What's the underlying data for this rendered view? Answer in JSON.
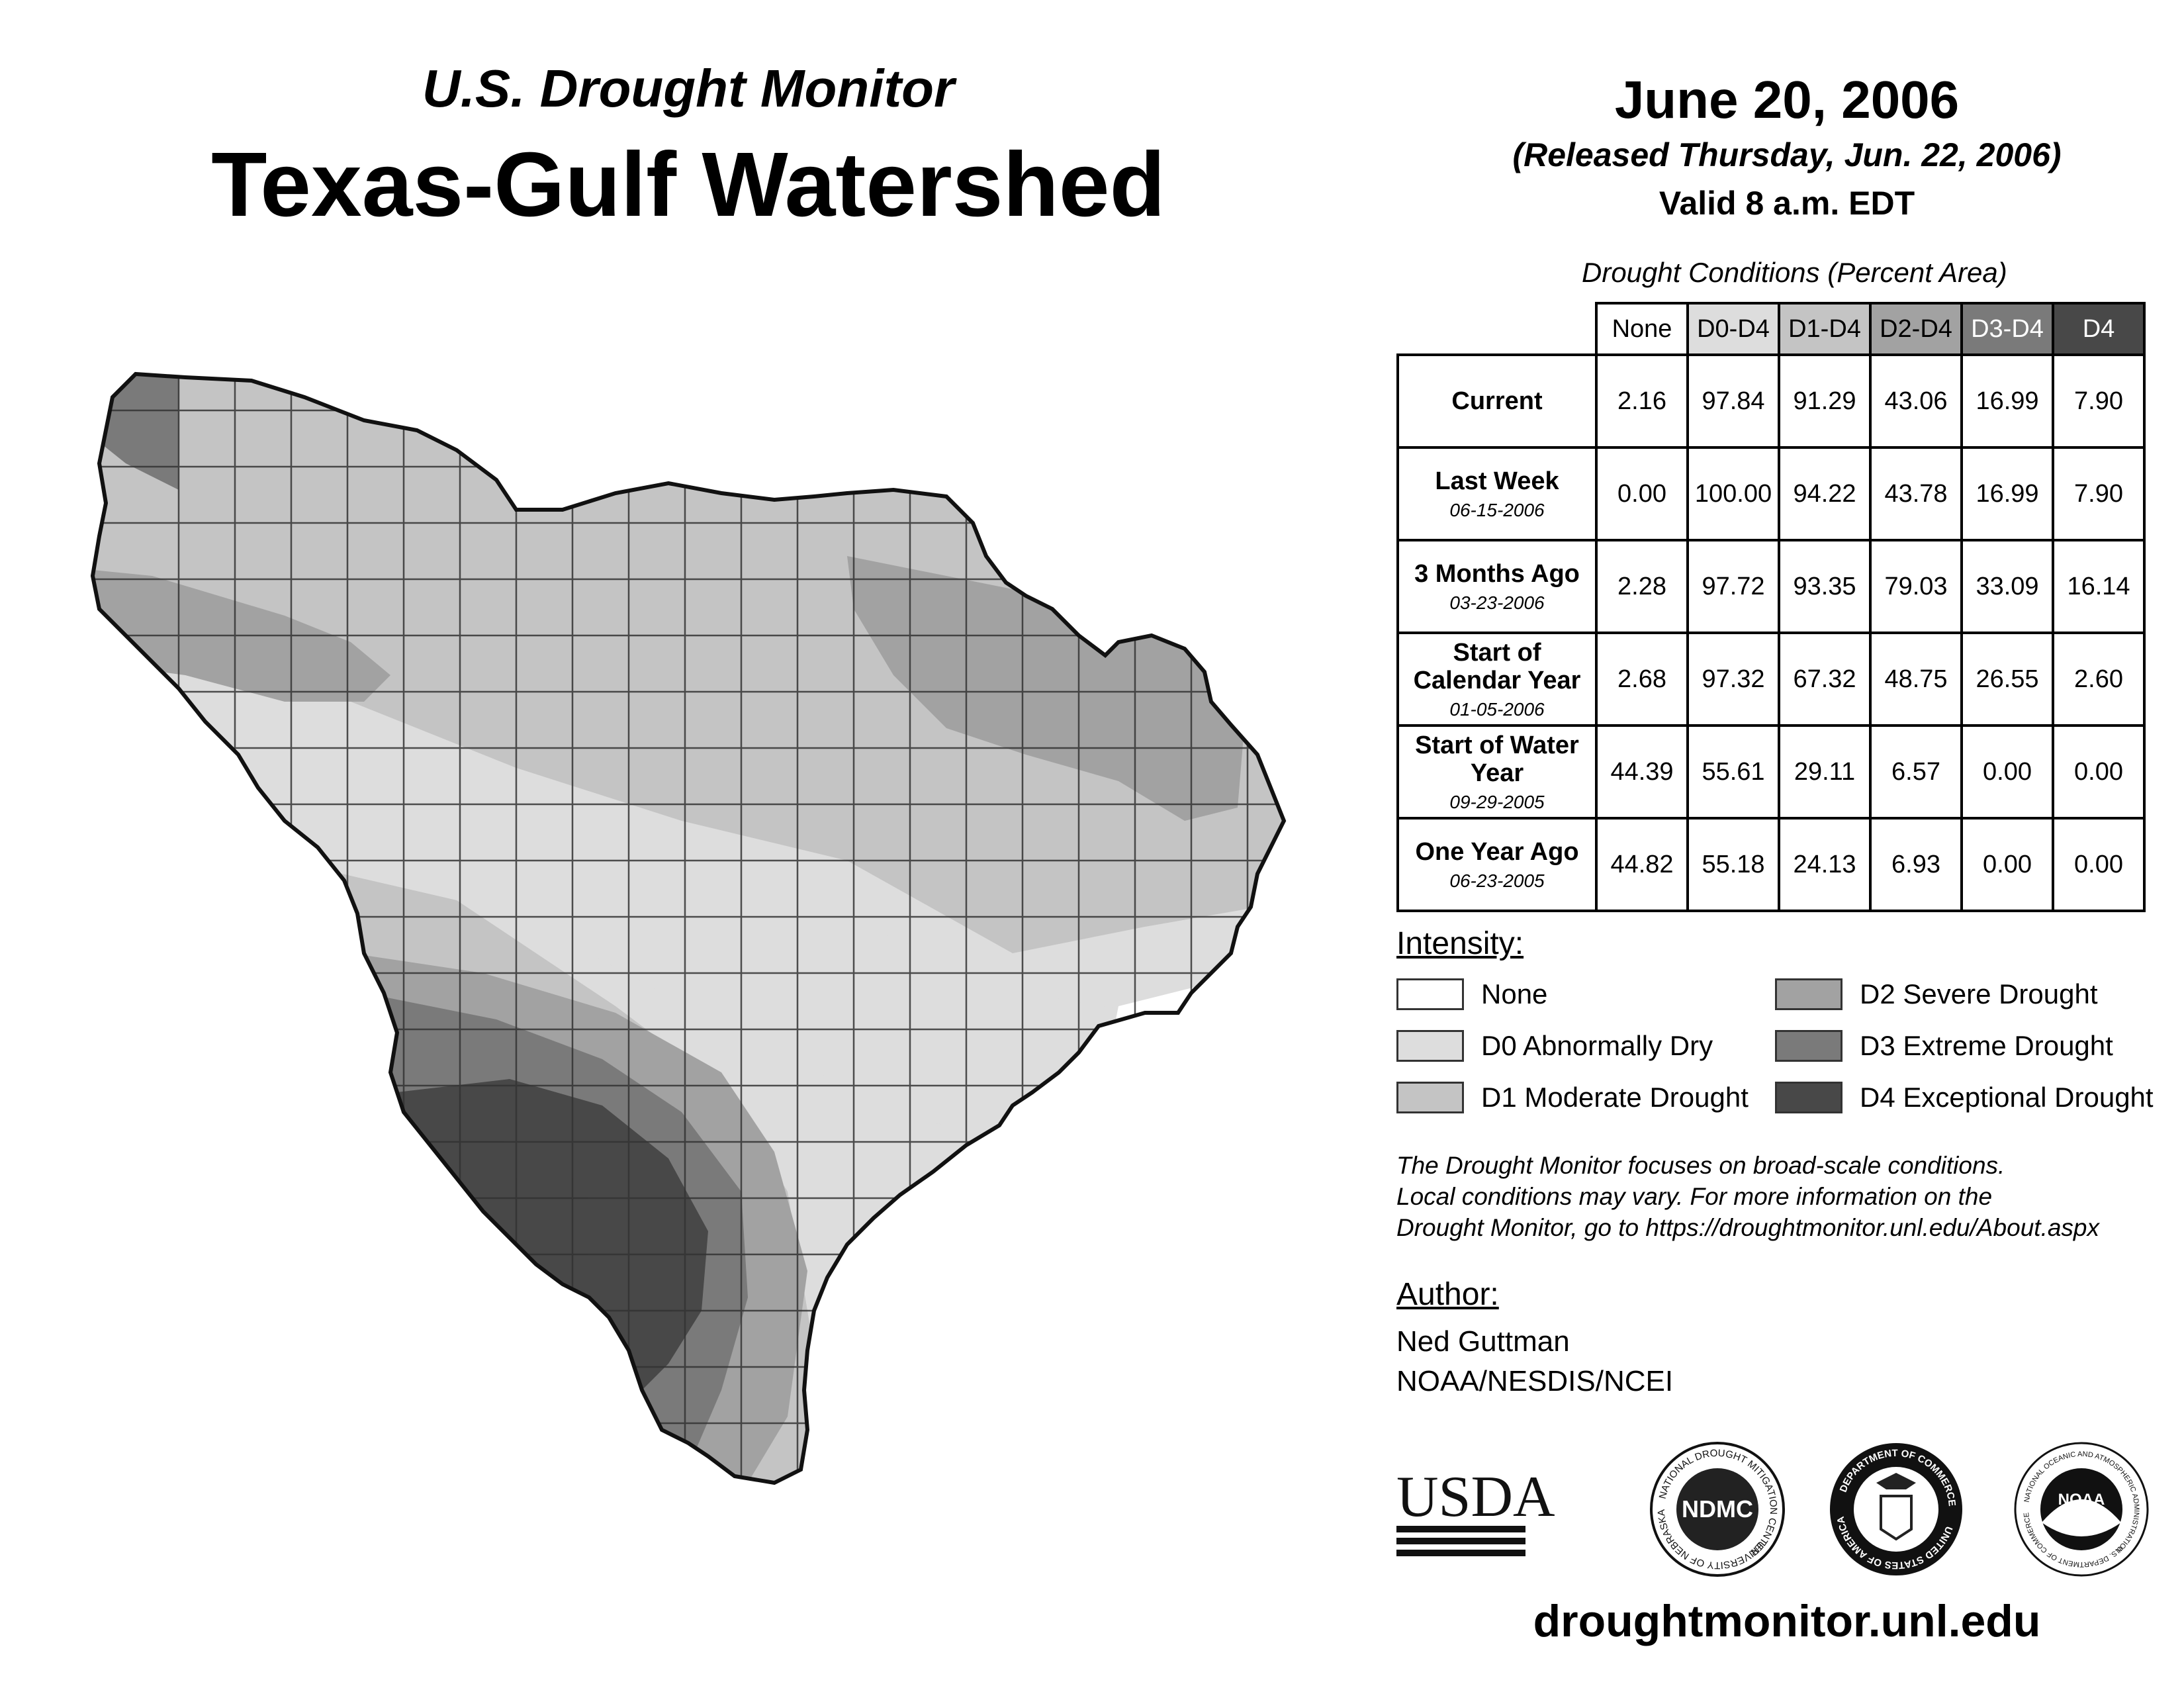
{
  "header": {
    "subtitle": "U.S. Drought Monitor",
    "title": "Texas-Gulf Watershed",
    "date": "June 20, 2006",
    "released": "(Released Thursday, Jun. 22, 2006)",
    "valid": "Valid 8 a.m. EDT"
  },
  "table": {
    "caption": "Drought Conditions (Percent Area)",
    "columns": [
      "None",
      "D0-D4",
      "D1-D4",
      "D2-D4",
      "D3-D4",
      "D4"
    ],
    "rows": [
      {
        "label": "Current",
        "date": "",
        "values": [
          "2.16",
          "97.84",
          "91.29",
          "43.06",
          "16.99",
          "7.90"
        ]
      },
      {
        "label": "Last Week",
        "date": "06-15-2006",
        "values": [
          "0.00",
          "100.00",
          "94.22",
          "43.78",
          "16.99",
          "7.90"
        ]
      },
      {
        "label": "3 Months Ago",
        "date": "03-23-2006",
        "values": [
          "2.28",
          "97.72",
          "93.35",
          "79.03",
          "33.09",
          "16.14"
        ]
      },
      {
        "label": "Start of Calendar Year",
        "date": "01-05-2006",
        "values": [
          "2.68",
          "97.32",
          "67.32",
          "48.75",
          "26.55",
          "2.60"
        ]
      },
      {
        "label": "Start of Water Year",
        "date": "09-29-2005",
        "values": [
          "44.39",
          "55.61",
          "29.11",
          "6.57",
          "0.00",
          "0.00"
        ]
      },
      {
        "label": "One Year Ago",
        "date": "06-23-2005",
        "values": [
          "44.82",
          "55.18",
          "24.13",
          "6.93",
          "0.00",
          "0.00"
        ]
      }
    ]
  },
  "legend": {
    "heading": "Intensity:",
    "items": [
      {
        "label": "None",
        "color": "#ffffff"
      },
      {
        "label": "D0 Abnormally Dry",
        "color": "#dddddd"
      },
      {
        "label": "D1 Moderate Drought",
        "color": "#c4c4c4"
      },
      {
        "label": "D2 Severe Drought",
        "color": "#a2a2a2"
      },
      {
        "label": "D3 Extreme Drought",
        "color": "#7a7a7a"
      },
      {
        "label": "D4 Exceptional Drought",
        "color": "#484848"
      }
    ]
  },
  "note": {
    "line1": "The Drought Monitor focuses on broad-scale conditions.",
    "line2": "Local conditions may vary. For more information on the",
    "line3": "Drought Monitor, go to https://droughtmonitor.unl.edu/About.aspx"
  },
  "author": {
    "heading": "Author:",
    "name": "Ned Guttman",
    "org": "NOAA/NESDIS/NCEI"
  },
  "logos": {
    "usda": "USDA",
    "ndmc": "NDMC",
    "ndmc_ring_top": "NATIONAL DROUGHT MITIGATION CENTER",
    "ndmc_ring_bottom": "UNIVERSITY OF NEBRASKA",
    "doc_ring_top": "DEPARTMENT OF COMMERCE",
    "doc_ring_bottom": "UNITED STATES OF AMERICA",
    "noaa": "NOAA",
    "noaa_ring_top": "NATIONAL OCEANIC AND ATMOSPHERIC ADMINISTRATION",
    "noaa_ring_bottom": "U.S. DEPARTMENT OF COMMERCE"
  },
  "footer": {
    "url": "droughtmonitor.unl.edu"
  }
}
